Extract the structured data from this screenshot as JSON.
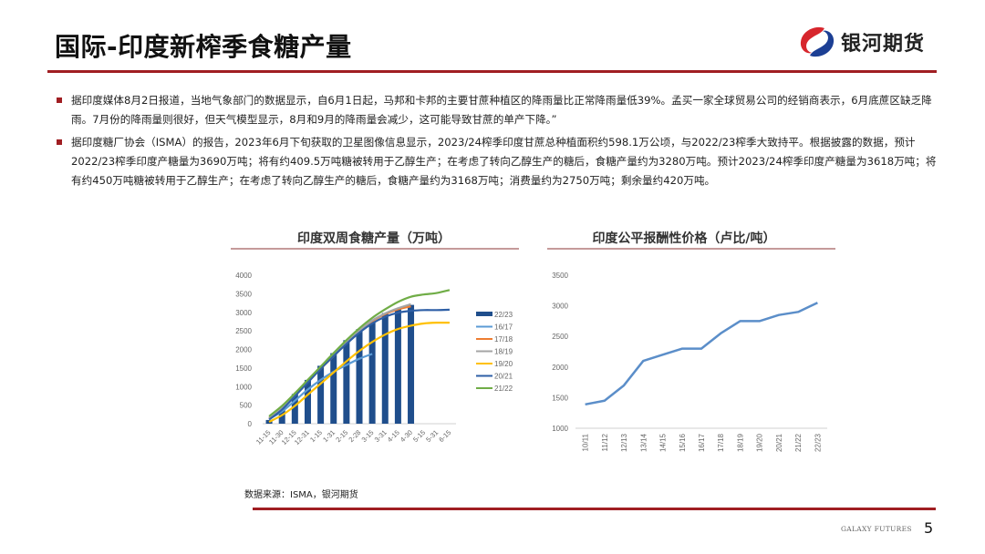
{
  "header": {
    "title": "国际-印度新榨季食糖产量",
    "logo_text": "银河期货",
    "logo_icon": "galaxy-futures-logo-icon"
  },
  "bullets": [
    {
      "text": "据印度媒体8月2日报道，当地气象部门的数据显示，自6月1日起，马邦和卡邦的主要甘蔗种植区的降雨量比正常降雨量低39%。孟买一家全球贸易公司的经销商表示，6月底蔗区缺乏降雨。7月份的降雨量则很好，但天气模型显示，8月和9月的降雨量会减少，这可能导致甘蔗的单产下降。”"
    },
    {
      "text": "据印度糖厂协会（ISMA）的报告，2023年6月下旬获取的卫星图像信息显示，2023/24榨季印度甘蔗总种植面积约598.1万公顷，与2022/23榨季大致持平。根据披露的数据，预计2022/23榨季印度产糖量为3690万吨；将有约409.5万吨糖被转用于乙醇生产；在考虑了转向乙醇生产的糖后，食糖产量约为3280万吨。预计2023/24榨季印度产糖量为3618万吨；将有约450万吨糖被转用于乙醇生产；在考虑了转向乙醇生产的糖后，食糖产量约为3168万吨；消费量约为2750万吨；剩余量约420万吨。"
    }
  ],
  "charts": {
    "left_title": "印度双周食糖产量（万吨）",
    "right_title": "印度公平报酬性价格（卢比/吨）"
  },
  "chart_data": [
    {
      "type": "bar",
      "title": "印度双周食糖产量（万吨）",
      "xlabel": "",
      "ylabel": "",
      "ylim": [
        0,
        4000
      ],
      "yticks": [
        0,
        500,
        1000,
        1500,
        2000,
        2500,
        3000,
        3500,
        4000
      ],
      "categories": [
        "11-15",
        "11-30",
        "12-15",
        "12-31",
        "1-15",
        "1-31",
        "2-15",
        "2-28",
        "3-15",
        "3-31",
        "4-15",
        "4-30",
        "5-15",
        "5-31",
        "6-15"
      ],
      "legend_position": "right",
      "series": [
        {
          "name": "22/23",
          "kind": "bar",
          "color": "#1f4e8c",
          "values": [
            100,
            380,
            800,
            1180,
            1560,
            1900,
            2250,
            2550,
            2750,
            2980,
            3080,
            3200,
            null,
            null,
            null
          ]
        },
        {
          "name": "16/17",
          "kind": "line",
          "color": "#5b9bd5",
          "values": [
            130,
            330,
            620,
            920,
            1180,
            1400,
            1580,
            1750,
            1880,
            null,
            null,
            null,
            null,
            null,
            null
          ]
        },
        {
          "name": "17/18",
          "kind": "line",
          "color": "#ed7d31",
          "values": [
            150,
            420,
            760,
            1120,
            1480,
            1820,
            2160,
            2480,
            2760,
            2950,
            3080,
            3160,
            null,
            null,
            null
          ]
        },
        {
          "name": "18/19",
          "kind": "line",
          "color": "#a5a5a5",
          "values": [
            160,
            430,
            780,
            1140,
            1500,
            1840,
            2180,
            2500,
            2780,
            2970,
            3110,
            3220,
            null,
            null,
            null
          ]
        },
        {
          "name": "19/20",
          "kind": "line",
          "color": "#ffc000",
          "values": [
            50,
            230,
            480,
            780,
            1080,
            1380,
            1680,
            1960,
            2200,
            2400,
            2550,
            2640,
            2700,
            2720,
            2720
          ]
        },
        {
          "name": "20/21",
          "kind": "line",
          "color": "#2e5fa6",
          "values": [
            110,
            380,
            740,
            1110,
            1480,
            1820,
            2150,
            2450,
            2700,
            2880,
            2990,
            3040,
            3060,
            3060,
            3070
          ]
        },
        {
          "name": "21/22",
          "kind": "line",
          "color": "#70ad47",
          "values": [
            200,
            480,
            820,
            1180,
            1540,
            1900,
            2250,
            2570,
            2850,
            3080,
            3280,
            3420,
            3480,
            3520,
            3600
          ]
        }
      ]
    },
    {
      "type": "line",
      "title": "印度公平报酬性价格（卢比/吨）",
      "xlabel": "",
      "ylabel": "",
      "ylim": [
        1000,
        3500
      ],
      "yticks": [
        1000,
        1500,
        2000,
        2500,
        3000,
        3500
      ],
      "categories": [
        "10/11",
        "11/12",
        "12/13",
        "13/14",
        "14/15",
        "15/16",
        "16/17",
        "17/18",
        "18/19",
        "19/20",
        "20/21",
        "21/22",
        "22/23"
      ],
      "series": [
        {
          "name": "FRP",
          "color": "#5b8ec9",
          "values": [
            1390,
            1450,
            1700,
            2100,
            2200,
            2300,
            2300,
            2550,
            2750,
            2750,
            2850,
            2900,
            3050
          ]
        }
      ]
    }
  ],
  "footer": {
    "source": "数据来源：ISMA，银河期货",
    "brand": "GALAXY FUTURES",
    "page_number": "5"
  },
  "colors": {
    "accent_red": "#a01e22",
    "bar_blue": "#1f4e8c"
  }
}
